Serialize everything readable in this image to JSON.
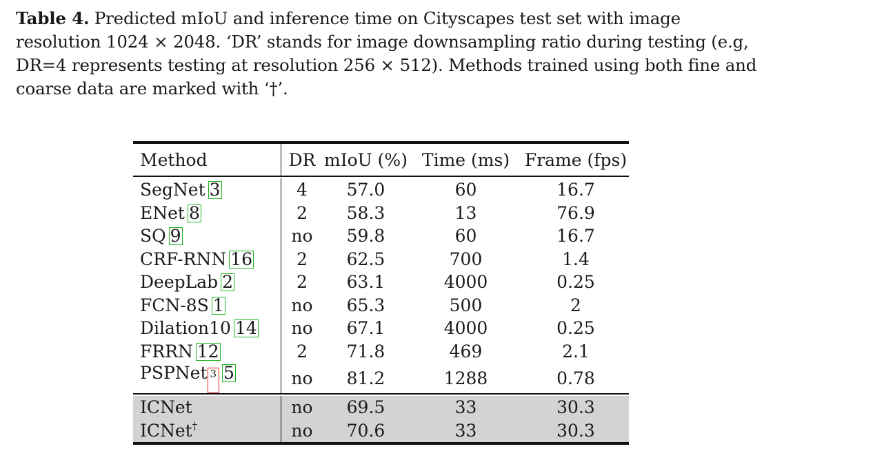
{
  "caption": {
    "label": "Table 4.",
    "text": " Predicted mIoU and inference time on Cityscapes test set with image resolution 1024 × 2048. ‘DR’ stands for image downsampling ratio during testing (e.g, DR=4 represents testing at resolution 256 × 512). Methods trained using both fine and coarse data are marked with ‘†’."
  },
  "table": {
    "headers": {
      "method": "Method",
      "dr": "DR",
      "miou": "mIoU (%)",
      "time": "Time (ms)",
      "fps": "Frame (fps)"
    },
    "rows": [
      {
        "method": "SegNet",
        "ref": "3",
        "dr": "4",
        "miou": "57.0",
        "time": "60",
        "fps": "16.7"
      },
      {
        "method": "ENet",
        "ref": "8",
        "dr": "2",
        "miou": "58.3",
        "time": "13",
        "fps": "76.9"
      },
      {
        "method": "SQ",
        "ref": "9",
        "dr": "no",
        "miou": "59.8",
        "time": "60",
        "fps": "16.7"
      },
      {
        "method": "CRF-RNN",
        "ref": "16",
        "dr": "2",
        "miou": "62.5",
        "time": "700",
        "fps": "1.4"
      },
      {
        "method": "DeepLab",
        "ref": "2",
        "dr": "2",
        "miou": "63.1",
        "time": "4000",
        "fps": "0.25"
      },
      {
        "method": "FCN-8S",
        "ref": "1",
        "dr": "no",
        "miou": "65.3",
        "time": "500",
        "fps": "2"
      },
      {
        "method": "Dilation10",
        "ref": "14",
        "dr": "no",
        "miou": "67.1",
        "time": "4000",
        "fps": "0.25"
      },
      {
        "method": "FRRN",
        "ref": "12",
        "dr": "2",
        "miou": "71.8",
        "time": "469",
        "fps": "2.1"
      },
      {
        "method": "PSPNet",
        "footnote": "3",
        "ref": "5",
        "dr": "no",
        "miou": "81.2",
        "time": "1288",
        "fps": "0.78"
      }
    ],
    "ours": [
      {
        "method": "ICNet",
        "dr": "no",
        "miou": "69.5",
        "time": "33",
        "fps": "30.3"
      },
      {
        "method": "ICNet",
        "dagger": "†",
        "dr": "no",
        "miou": "70.6",
        "time": "33",
        "fps": "30.3"
      }
    ]
  }
}
